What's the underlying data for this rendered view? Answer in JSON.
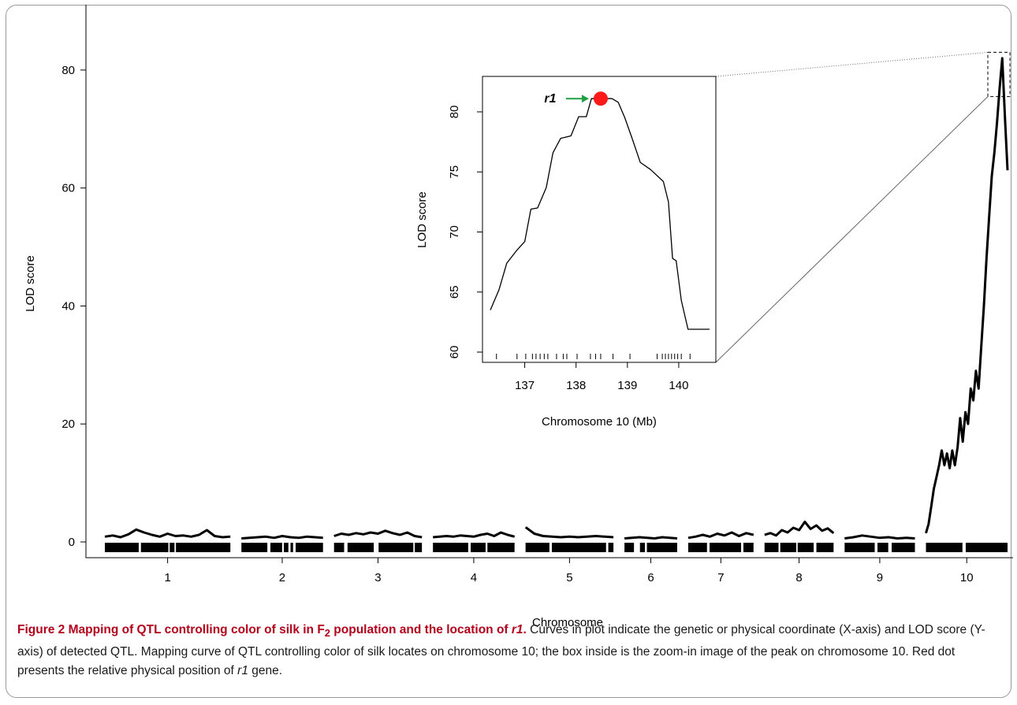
{
  "chart_data": [
    {
      "type": "line",
      "name": "main-genome-scan",
      "xlabel": "Chromosome",
      "ylabel": "LOD score",
      "ylim": [
        0,
        90
      ],
      "yticks": [
        0,
        20,
        40,
        60,
        80
      ],
      "chromosomes": [
        "1",
        "2",
        "3",
        "4",
        "5",
        "6",
        "7",
        "8",
        "9",
        "10"
      ],
      "chrom_widths": [
        100,
        65,
        70,
        65,
        70,
        42,
        52,
        55,
        56,
        65
      ],
      "series": [
        {
          "chromosome": "1",
          "values": [
            0.9,
            1.1,
            0.8,
            1.3,
            2.1,
            1.6,
            1.2,
            0.9,
            1.4,
            1.0,
            1.1,
            0.9,
            1.2,
            2.0,
            1.0,
            0.8,
            0.9
          ]
        },
        {
          "chromosome": "2",
          "values": [
            0.6,
            0.7,
            0.8,
            0.9,
            0.7,
            1.0,
            0.8,
            0.7,
            0.9,
            0.8,
            0.7
          ]
        },
        {
          "chromosome": "3",
          "values": [
            1.0,
            1.4,
            1.2,
            1.5,
            1.3,
            1.6,
            1.4,
            1.9,
            1.5,
            1.2,
            1.6,
            1.0,
            0.8
          ]
        },
        {
          "chromosome": "4",
          "values": [
            0.8,
            0.9,
            1.0,
            0.9,
            1.1,
            1.0,
            0.9,
            1.2,
            1.4,
            1.0,
            1.6,
            1.2,
            0.9
          ]
        },
        {
          "chromosome": "5",
          "values": [
            2.5,
            1.4,
            1.0,
            0.9,
            0.8,
            0.9,
            0.8,
            0.9,
            1.0,
            0.9,
            0.8
          ]
        },
        {
          "chromosome": "6",
          "values": [
            0.6,
            0.7,
            0.8,
            0.7,
            0.6,
            0.8,
            0.7,
            0.6
          ]
        },
        {
          "chromosome": "7",
          "values": [
            0.7,
            0.9,
            1.2,
            0.9,
            1.4,
            1.1,
            1.6,
            1.0,
            1.5,
            1.2
          ]
        },
        {
          "chromosome": "8",
          "values": [
            1.2,
            1.5,
            1.1,
            2.0,
            1.6,
            2.4,
            2.0,
            3.4,
            2.2,
            2.8,
            1.9,
            2.3,
            1.5
          ]
        },
        {
          "chromosome": "9",
          "values": [
            0.6,
            0.8,
            1.1,
            0.9,
            0.7,
            0.8,
            0.6,
            0.7,
            0.6
          ]
        },
        {
          "chromosome": "10",
          "values": [
            1.5,
            3.0,
            6.0,
            9.0,
            11.0,
            13.0,
            15.5,
            13.0,
            15.0,
            12.5,
            15.5,
            13.0,
            16.0,
            21.0,
            17.0,
            22.0,
            20.0,
            26.0,
            24.0,
            29.0,
            26.0,
            33.0,
            40.0,
            48.0,
            55.0,
            62.0,
            66.0,
            71.0,
            77.0,
            82.0,
            72.0,
            63.0
          ]
        }
      ]
    },
    {
      "type": "line",
      "name": "inset-zoom",
      "xlabel": "Chromosome 10 (Mb)",
      "ylabel": "LOD score",
      "xlim": [
        136.3,
        140.6
      ],
      "ylim": [
        60,
        83
      ],
      "xticks": [
        137,
        138,
        139,
        140
      ],
      "yticks": [
        60,
        65,
        70,
        75,
        80
      ],
      "x": [
        136.33,
        136.5,
        136.65,
        136.85,
        137.0,
        137.12,
        137.25,
        137.42,
        137.55,
        137.7,
        137.9,
        138.05,
        138.2,
        138.3,
        138.48,
        138.62,
        138.7,
        138.82,
        138.95,
        139.1,
        139.25,
        139.45,
        139.7,
        139.8,
        139.88,
        139.95,
        140.05,
        140.18,
        140.3,
        140.6
      ],
      "y": [
        63.5,
        65.2,
        67.4,
        68.5,
        69.2,
        71.9,
        72.0,
        73.7,
        76.6,
        77.8,
        78.0,
        79.6,
        79.6,
        81.1,
        81.1,
        81.1,
        81.1,
        80.8,
        79.5,
        77.7,
        75.8,
        75.2,
        74.2,
        72.5,
        67.8,
        67.6,
        64.3,
        61.9,
        61.9,
        61.9
      ],
      "marker_ticks": [
        136.45,
        136.85,
        137.02,
        137.15,
        137.22,
        137.3,
        137.38,
        137.45,
        137.62,
        137.75,
        137.82,
        138.02,
        138.28,
        138.38,
        138.48,
        138.72,
        139.05,
        139.58,
        139.68,
        139.74,
        139.8,
        139.86,
        139.92,
        139.98,
        140.05,
        140.22
      ],
      "highlight": {
        "label": "r1",
        "x": 138.48,
        "y": 81.1,
        "color": "#ff1a1a",
        "arrow_color": "#1fa043"
      }
    }
  ],
  "caption": {
    "title": "Figure 2 Mapping of QTL controlling color of silk in F",
    "title_sub": "2",
    "title_rest": " population and the location of ",
    "title_gene": "r1",
    "title_end": ".",
    "body_1": " Curves in plot indicate the genetic or physical coordinate (X-axis) and LOD score (Y-axis) of detected QTL. Mapping curve of QTL controlling color of silk locates on chromosome 10; the box inside is the zoom-in image of the peak on chromosome 10. Red dot presents the relative physical position of ",
    "body_gene": "r1",
    "body_2": " gene."
  },
  "colors": {
    "curve": "#000000",
    "axis": "#000000",
    "caption_title": "#b3001b",
    "guide_lines": "#666666"
  }
}
